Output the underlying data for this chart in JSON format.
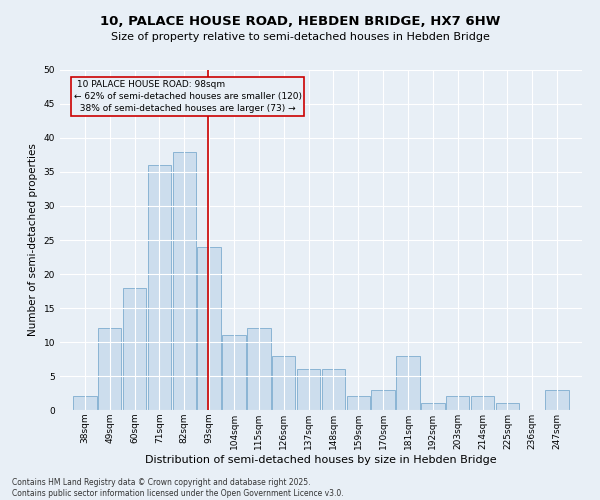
{
  "title": "10, PALACE HOUSE ROAD, HEBDEN BRIDGE, HX7 6HW",
  "subtitle": "Size of property relative to semi-detached houses in Hebden Bridge",
  "xlabel": "Distribution of semi-detached houses by size in Hebden Bridge",
  "ylabel": "Number of semi-detached properties",
  "footer": "Contains HM Land Registry data © Crown copyright and database right 2025.\nContains public sector information licensed under the Open Government Licence v3.0.",
  "bins": [
    38,
    49,
    60,
    71,
    82,
    93,
    104,
    115,
    126,
    137,
    148,
    159,
    170,
    181,
    192,
    203,
    214,
    225,
    236,
    247,
    258
  ],
  "values": [
    2,
    12,
    18,
    36,
    38,
    24,
    11,
    12,
    8,
    6,
    6,
    2,
    3,
    8,
    1,
    2,
    2,
    1,
    0,
    3
  ],
  "bar_color": "#ccdded",
  "bar_edge_color": "#8ab4d4",
  "subject_value": 98,
  "subject_label": "10 PALACE HOUSE ROAD: 98sqm",
  "pct_smaller": 62,
  "n_smaller": 120,
  "pct_larger": 38,
  "n_larger": 73,
  "vline_color": "#cc0000",
  "annotation_box_color": "#cc0000",
  "ylim": [
    0,
    50
  ],
  "yticks": [
    0,
    5,
    10,
    15,
    20,
    25,
    30,
    35,
    40,
    45,
    50
  ],
  "bg_color": "#e8eff6",
  "grid_color": "#ffffff",
  "title_fontsize": 9.5,
  "subtitle_fontsize": 8.0,
  "axis_label_fontsize": 7.5,
  "tick_fontsize": 6.5,
  "annotation_fontsize": 6.5,
  "footer_fontsize": 5.5
}
